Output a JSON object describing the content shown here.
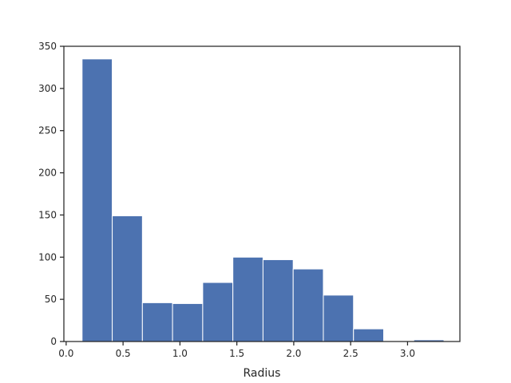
{
  "chart_data": {
    "type": "bar",
    "title": "",
    "xlabel": "Radius",
    "ylabel": "",
    "xlim": [
      -0.02,
      3.46
    ],
    "ylim": [
      0,
      350
    ],
    "xticks": [
      0.0,
      0.5,
      1.0,
      1.5,
      2.0,
      2.5,
      3.0
    ],
    "xtick_labels": [
      "0.0",
      "0.5",
      "1.0",
      "1.5",
      "2.0",
      "2.5",
      "3.0"
    ],
    "yticks": [
      0,
      50,
      100,
      150,
      200,
      250,
      300,
      350
    ],
    "ytick_labels": [
      "0",
      "50",
      "100",
      "150",
      "200",
      "250",
      "300",
      "350"
    ],
    "bin_edges": [
      0.14,
      0.405,
      0.67,
      0.935,
      1.2,
      1.465,
      1.73,
      1.995,
      2.26,
      2.525,
      2.79,
      3.055,
      3.32
    ],
    "counts": [
      335,
      149,
      46,
      45,
      70,
      100,
      97,
      86,
      55,
      15,
      0,
      2
    ],
    "bar_color": "#4c72b0",
    "grid": false,
    "legend": "none"
  }
}
